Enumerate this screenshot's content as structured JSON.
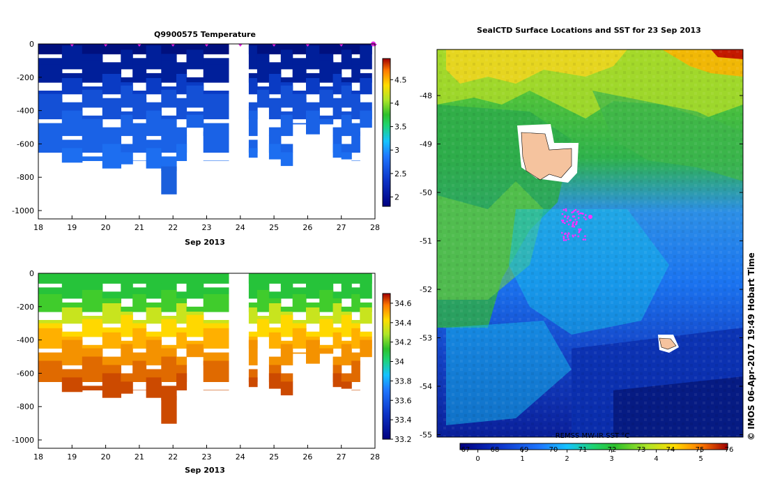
{
  "chart_data": [
    {
      "type": "heatmap",
      "title": "Q9900575  Temperature",
      "xlabel": "Sep 2013",
      "x_ticks": [
        "18",
        "19",
        "20",
        "21",
        "22",
        "23",
        "24",
        "25",
        "26",
        "27",
        "28"
      ],
      "xlim": [
        18,
        28
      ],
      "ylim": [
        -1050,
        0
      ],
      "y_ticks": [
        "0",
        "-200",
        "-400",
        "-600",
        "-800",
        "-1000"
      ],
      "colorbar": {
        "range": [
          1.8,
          4.95
        ],
        "ticks": [
          "2",
          "2.5",
          "3",
          "3.5",
          "4",
          "4.5"
        ]
      },
      "profile_markers_x": [
        19,
        20,
        21,
        22,
        23,
        24,
        25,
        26,
        27,
        28
      ],
      "columns": [
        {
          "x0": 18.0,
          "x1": 18.7,
          "max_depth": -680
        },
        {
          "x0": 18.7,
          "x1": 19.3,
          "max_depth": -710
        },
        {
          "x0": 19.3,
          "x1": 19.9,
          "max_depth": -700
        },
        {
          "x0": 19.9,
          "x1": 20.45,
          "max_depth": -745
        },
        {
          "x0": 20.45,
          "x1": 20.8,
          "max_depth": -720
        },
        {
          "x0": 20.8,
          "x1": 21.2,
          "max_depth": -700
        },
        {
          "x0": 21.2,
          "x1": 21.65,
          "max_depth": -745
        },
        {
          "x0": 21.65,
          "x1": 22.1,
          "max_depth": -920
        },
        {
          "x0": 22.1,
          "x1": 22.4,
          "max_depth": -700
        },
        {
          "x0": 22.4,
          "x1": 22.9,
          "max_depth": -500
        },
        {
          "x0": 22.9,
          "x1": 23.65,
          "max_depth": -700
        },
        {
          "x0": 24.25,
          "x1": 24.5,
          "max_depth": -680
        },
        {
          "x0": 24.5,
          "x1": 24.85,
          "max_depth": -400
        },
        {
          "x0": 24.85,
          "x1": 25.2,
          "max_depth": -690
        },
        {
          "x0": 25.2,
          "x1": 25.55,
          "max_depth": -730
        },
        {
          "x0": 25.55,
          "x1": 25.95,
          "max_depth": -480
        },
        {
          "x0": 25.95,
          "x1": 26.35,
          "max_depth": -540
        },
        {
          "x0": 26.35,
          "x1": 26.75,
          "max_depth": -480
        },
        {
          "x0": 26.75,
          "x1": 27.0,
          "max_depth": -680
        },
        {
          "x0": 27.0,
          "x1": 27.3,
          "max_depth": -690
        },
        {
          "x0": 27.3,
          "x1": 27.55,
          "max_depth": -700
        },
        {
          "x0": 27.55,
          "x1": 27.9,
          "max_depth": -500
        }
      ]
    },
    {
      "type": "heatmap",
      "title": "",
      "xlabel": "Sep 2013",
      "x_ticks": [
        "18",
        "19",
        "20",
        "21",
        "22",
        "23",
        "24",
        "25",
        "26",
        "27",
        "28"
      ],
      "xlim": [
        18,
        28
      ],
      "ylim": [
        -1050,
        0
      ],
      "y_ticks": [
        "0",
        "-200",
        "-400",
        "-600",
        "-800",
        "-1000"
      ],
      "colorbar": {
        "range": [
          33.2,
          34.7
        ],
        "ticks": [
          "33.2",
          "33.4",
          "33.6",
          "33.8",
          "34",
          "34.2",
          "34.4",
          "34.6"
        ]
      }
    },
    {
      "type": "heatmap",
      "title": "SealCTD Surface Locations and SST for 23 Sep 2013",
      "y_ticks": [
        "-48",
        "-49",
        "-50",
        "-51",
        "-52",
        "-53",
        "-54",
        "-55"
      ],
      "ylim": [
        -55.05,
        -47.05
      ],
      "colorbar": {
        "label": "REMSS MW-IR SST °C",
        "range": [
          -0.4,
          5.6
        ],
        "ticks": [
          "0",
          "1",
          "2",
          "3",
          "4",
          "5"
        ],
        "upper_ticks": [
          "67",
          "68",
          "69",
          "70",
          "71",
          "72",
          "73",
          "74",
          "75",
          "76"
        ]
      },
      "credit": "© IMOS 06-Apr-2017 19:49 Hobart Time"
    }
  ]
}
